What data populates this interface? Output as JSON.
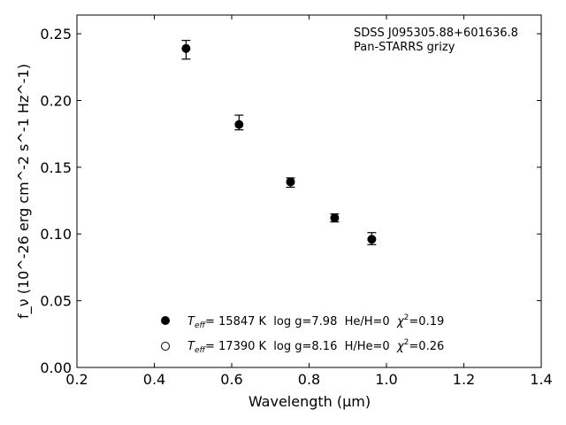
{
  "chart_data": {
    "type": "scatter",
    "xlabel": "Wavelength (μm)",
    "ylabel": "f_ν (10^-26 erg cm^-2 s^-1 Hz^-1)",
    "xlim": [
      0.2,
      1.4
    ],
    "ylim": [
      0.0,
      0.264
    ],
    "grid": false,
    "x_ticks": [
      "0.2",
      "0.4",
      "0.6",
      "0.8",
      "1.0",
      "1.2",
      "1.4"
    ],
    "y_ticks": [
      "0.00",
      "0.05",
      "0.10",
      "0.15",
      "0.20",
      "0.25"
    ],
    "annotation": [
      "SDSS J095305.88+601636.8",
      "Pan-STARRS grizy"
    ],
    "series": [
      {
        "marker": "filled-circle",
        "x": [
          0.482,
          0.619,
          0.752,
          0.866,
          0.962
        ],
        "y": [
          0.239,
          0.182,
          0.139,
          0.112,
          0.096
        ],
        "yerr_low": [
          0.008,
          0.004,
          0.004,
          0.003,
          0.004
        ],
        "yerr_high": [
          0.006,
          0.007,
          0.003,
          0.003,
          0.005
        ]
      },
      {
        "marker": "open-circle",
        "x": [],
        "y": []
      }
    ],
    "legend_placement": "lower-center",
    "legend": [
      {
        "marker": "filled-circle",
        "teff_label": "T",
        "teff_sub": "eff",
        "teff_value": "= 15847 K  log g=7.98  He/H=0  ",
        "chi_label": "χ",
        "chi_sup": "2",
        "chi_value": "=0.19"
      },
      {
        "marker": "open-circle",
        "teff_label": "T",
        "teff_sub": "eff",
        "teff_value": "= 17390 K  log g=8.16  H/He=0  ",
        "chi_label": "χ",
        "chi_sup": "2",
        "chi_value": "=0.26"
      }
    ]
  }
}
